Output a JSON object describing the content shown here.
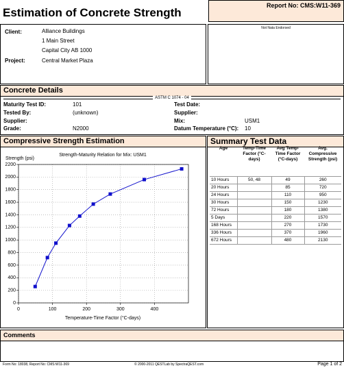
{
  "header": {
    "title": "Estimation of Concrete Strength",
    "report_no": "Report No: CMS:W11-369"
  },
  "client": {
    "client_label": "Client:",
    "client_lines": [
      "Alliance Buildings",
      "1 Main Street",
      "Capital City  AB  1000"
    ],
    "project_label": "Project:",
    "project": "Central Market Plaza",
    "endorsement": "Not Nata Endorsed"
  },
  "concrete_details": {
    "title": "Concrete Details",
    "standard": "ASTM C 1074 - 04",
    "left_fields": [
      {
        "label": "Maturity Test ID:",
        "value": "101"
      },
      {
        "label": "Tested By:",
        "value": "(unknown)"
      },
      {
        "label": "Supplier:"
      },
      {
        "label": "Grade:",
        "value": "N2000"
      }
    ],
    "right_fields": [
      {
        "label": "Test Date:"
      },
      {
        "label": "Supplier:"
      },
      {
        "label": "Mix:",
        "value": "USM1"
      },
      {
        "label": "Datum Temperature (°C):",
        "value": "10"
      }
    ]
  },
  "strength_estimation": {
    "title": "Compressive Strength Estimation",
    "chart": {
      "type": "line",
      "title": "Strength-Maturity Relation for Mix: USM1",
      "y_label": "Strength (psi)",
      "x_label": "Temperature-Time Factor (°C-days)",
      "xlim": [
        0,
        500
      ],
      "xticks": [
        0,
        100,
        200,
        300,
        400
      ],
      "ylim": [
        0,
        2200
      ],
      "yticks": [
        0,
        200,
        400,
        600,
        800,
        1000,
        1200,
        1400,
        1600,
        1800,
        2000,
        2200
      ],
      "grid": true,
      "color": "#1010cc"
    }
  },
  "summary": {
    "title": "Summary Test Data",
    "columns": [
      "Age",
      "Temp-Time Factor (°C-days)",
      "Avg Temp-Time Factor (°C-days)",
      "Avg. Compressive Strength (psi)"
    ],
    "rows": [
      [
        "10 Hours",
        "50, 48",
        49,
        260
      ],
      [
        "20 Hours",
        null,
        85,
        720
      ],
      [
        "24 Hours",
        null,
        110,
        950
      ],
      [
        "30 Hours",
        null,
        150,
        1230
      ],
      [
        "72 Hours",
        null,
        180,
        1380
      ],
      [
        "5 Days",
        null,
        220,
        1570
      ],
      [
        "168 Hours",
        null,
        270,
        1730
      ],
      [
        "336 Hours",
        null,
        370,
        1960
      ],
      [
        "672 Hours",
        null,
        480,
        2130
      ]
    ]
  },
  "comments": {
    "title": "Comments"
  },
  "footer": {
    "form": "Form No: 18038, Report No: CMS:W11-369",
    "copyright": "© 2000-2011 QESTLab by SpectraQEST.com",
    "page": "Page 1 of 2"
  }
}
